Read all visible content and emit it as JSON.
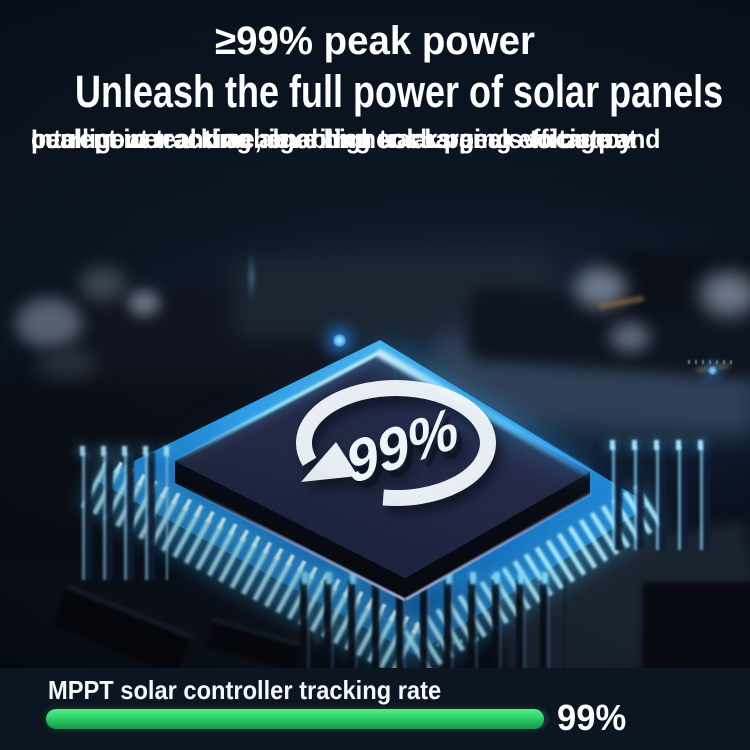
{
  "colors": {
    "background": "#0c1724",
    "panel_background": "#0c1522",
    "headline_text": "#ffffff",
    "glow_cyan": "#4fd2ff",
    "progress_green": "#2bd465"
  },
  "header": {
    "headline_top": "≥99% peak power",
    "headline_main": "Unleash the full power of solar panels",
    "body_lines": [
      "Intelligent tracking algorithm tracks peak voltage and",
      "current in real time, enabling solar panels to output",
      "peak power and achieve higher charging efficiency"
    ]
  },
  "chip": {
    "badge_value": "99%",
    "badge_icon": "cycle-arrow-icon"
  },
  "tracking": {
    "label": "MPPT solar controller tracking rate",
    "percent": 99,
    "value_text": "99%"
  }
}
